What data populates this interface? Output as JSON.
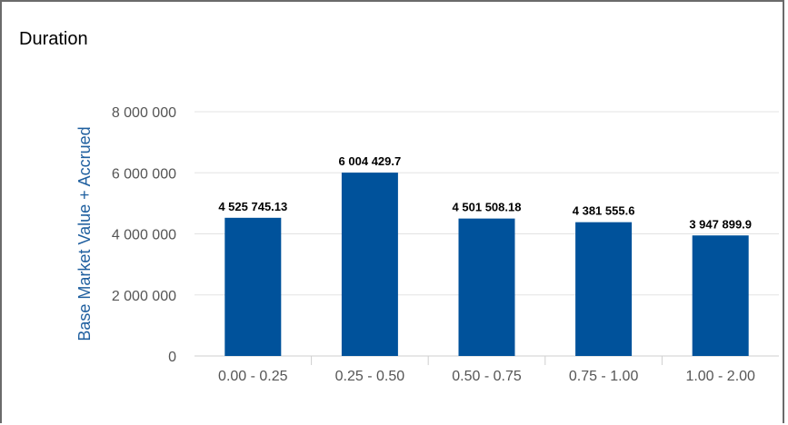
{
  "panel": {
    "title": "Duration"
  },
  "chart_data": {
    "type": "bar",
    "title": "",
    "xlabel": "",
    "ylabel": "Base Market Value + Accrued",
    "ylim": [
      0,
      8000000
    ],
    "yticks": [
      0,
      2000000,
      4000000,
      6000000,
      8000000
    ],
    "ytick_labels": [
      "0",
      "2 000 000",
      "4 000 000",
      "6 000 000",
      "8 000 000"
    ],
    "categories": [
      "0.00 - 0.25",
      "0.25 - 0.50",
      "0.50 - 0.75",
      "0.75 - 1.00",
      "1.00 - 2.00"
    ],
    "values": [
      4525745.13,
      6004429.7,
      4501508.18,
      4381555.6,
      3947899.9
    ],
    "data_labels": [
      "4 525 745.13",
      "6 004 429.7",
      "4 501 508.18",
      "4 381 555.6",
      "3 947 899.9"
    ],
    "grid": true,
    "bar_color": "#00529b",
    "grid_color": "#e3e3e3",
    "axis_text_color": "#555555",
    "ylabel_color": "#1f5f9f"
  }
}
